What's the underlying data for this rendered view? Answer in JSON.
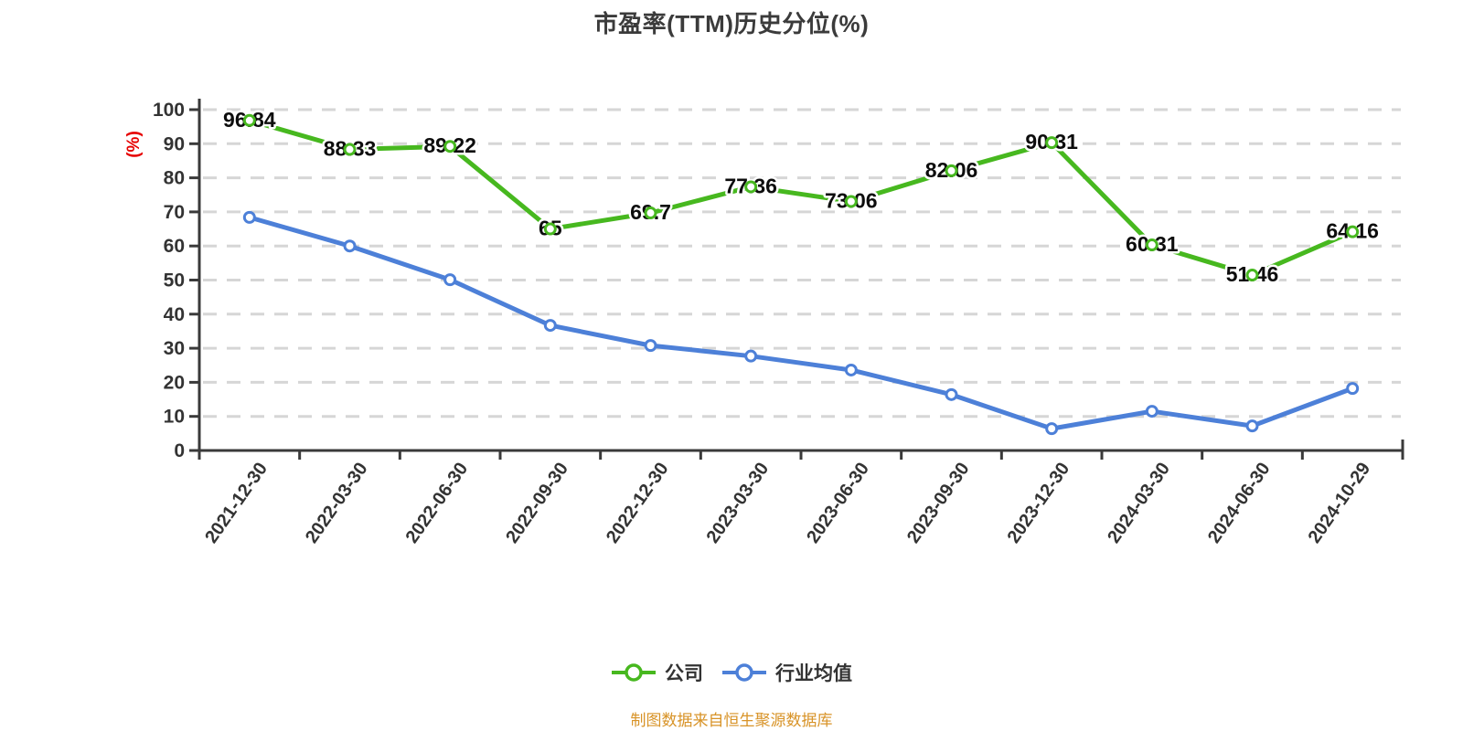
{
  "title": "市盈率(TTM)历史分位(%)",
  "footer": "制图数据来自恒生聚源数据库",
  "colors": {
    "company": "#47b81f",
    "industry": "#4d80d8",
    "axis": "#3a3a3a",
    "grid": "#d6d6d6",
    "data_label": "#0d0d0d",
    "tick_text": "#333333",
    "axis_name_red": "#e60000",
    "title_text": "#3b3b3b",
    "footer_text": "#d89327",
    "legend_text": "#333333",
    "marker_fill": "#ffffff"
  },
  "legend": {
    "items": [
      {
        "label": "公司",
        "marker": "circle-on-line",
        "color": "#47b81f"
      },
      {
        "label": "行业均值",
        "marker": "circle-on-line",
        "color": "#4d80d8"
      }
    ]
  },
  "chart_data": {
    "type": "line",
    "title": "市盈率(TTM)历史分位(%)",
    "xlabel": "",
    "ylabel": "(%)",
    "ylim": [
      0,
      100
    ],
    "y_interval": 10,
    "y_ticks": [
      "0",
      "10",
      "20",
      "30",
      "40",
      "50",
      "60",
      "70",
      "80",
      "90",
      "100"
    ],
    "grid": "dashed",
    "legend_position": "bottom",
    "categories": [
      "2021-12-30",
      "2022-03-30",
      "2022-06-30",
      "2022-09-30",
      "2022-12-30",
      "2023-03-30",
      "2023-06-30",
      "2023-09-30",
      "2023-12-30",
      "2024-03-30",
      "2024-06-30",
      "2024-10-29"
    ],
    "series": [
      {
        "name": "公司",
        "color": "#47b81f",
        "values": [
          96.84,
          88.33,
          89.22,
          65,
          69.7,
          77.36,
          73.06,
          82.06,
          90.31,
          60.31,
          51.46,
          64.16
        ],
        "point_labels": [
          "96.84",
          "88.33",
          "89.22",
          "65",
          "69.7",
          "77.36",
          "73.06",
          "82.06",
          "90.31",
          "60.31",
          "51.46",
          "64.16"
        ],
        "show_labels": true
      },
      {
        "name": "行业均值",
        "color": "#4d80d8",
        "values": [
          68.4,
          60.0,
          50.1,
          36.7,
          30.8,
          27.7,
          23.6,
          16.4,
          6.4,
          11.5,
          7.2,
          18.2
        ],
        "point_labels": [],
        "show_labels": false
      }
    ]
  }
}
